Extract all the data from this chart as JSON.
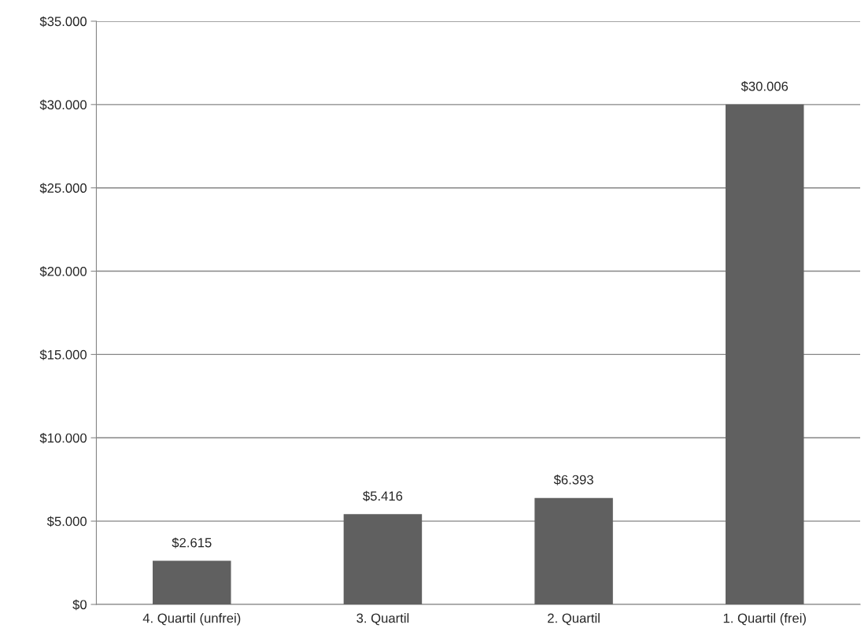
{
  "chart_data": {
    "type": "bar",
    "categories": [
      "4. Quartil (unfrei)",
      "3. Quartil",
      "2. Quartil",
      "1. Quartil (frei)"
    ],
    "values": [
      2615,
      5416,
      6393,
      30006
    ],
    "value_labels": [
      "$2.615",
      "$5.416",
      "$6.393",
      "$30.006"
    ],
    "color": "#606060",
    "ylim": [
      0,
      35000
    ],
    "yticks": [
      {
        "value": 0,
        "label": "$0"
      },
      {
        "value": 5000,
        "label": "$5.000"
      },
      {
        "value": 10000,
        "label": "$10.000"
      },
      {
        "value": 15000,
        "label": "$15.000"
      },
      {
        "value": 20000,
        "label": "$20.000"
      },
      {
        "value": 25000,
        "label": "$25.000"
      },
      {
        "value": 30000,
        "label": "$30.000"
      },
      {
        "value": 35000,
        "label": "$35.000"
      }
    ],
    "grid": "y"
  }
}
